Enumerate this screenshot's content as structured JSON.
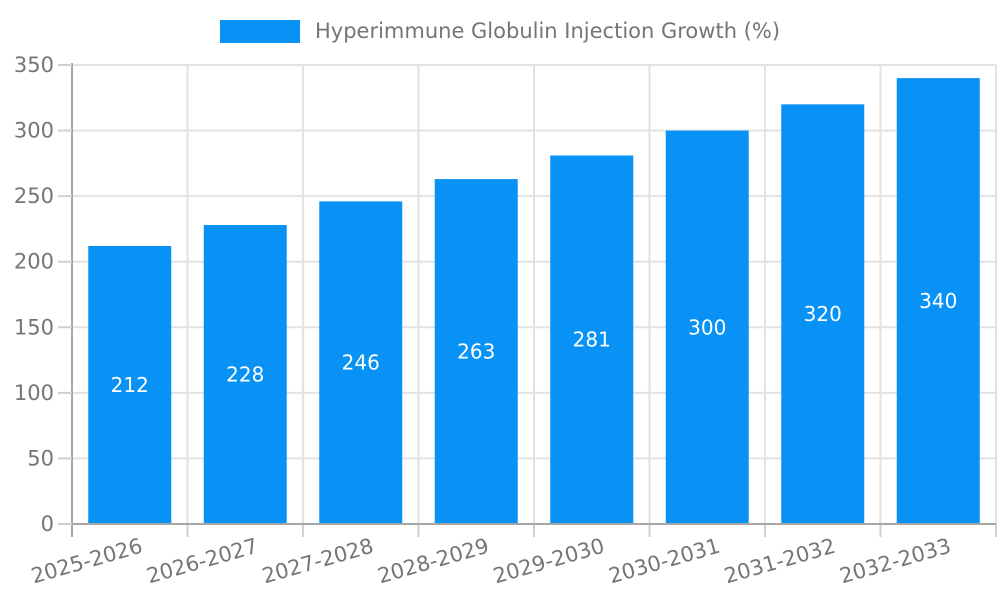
{
  "chart_data": {
    "type": "bar",
    "title": "Hyperimmune Globulin Injection Growth (%)",
    "categories": [
      "2025-2026",
      "2026-2027",
      "2027-2028",
      "2028-2029",
      "2029-2030",
      "2030-2031",
      "2031-2032",
      "2032-2033"
    ],
    "values": [
      212,
      228,
      246,
      263,
      281,
      300,
      320,
      340
    ],
    "xlabel": "",
    "ylabel": "",
    "ylim": [
      0,
      350
    ],
    "yticks": [
      0,
      50,
      100,
      150,
      200,
      250,
      300,
      350
    ],
    "grid": true,
    "legend_position": "top",
    "bar_color": "#0892f5",
    "value_label_color": "#ffffff",
    "axis_text_color": "#757575",
    "gridline_color": "#e2e2e2",
    "axis_line_color": "#a6a6a6",
    "tick_color": "#cfcfcf",
    "x_tick_rotation_deg": -16
  }
}
